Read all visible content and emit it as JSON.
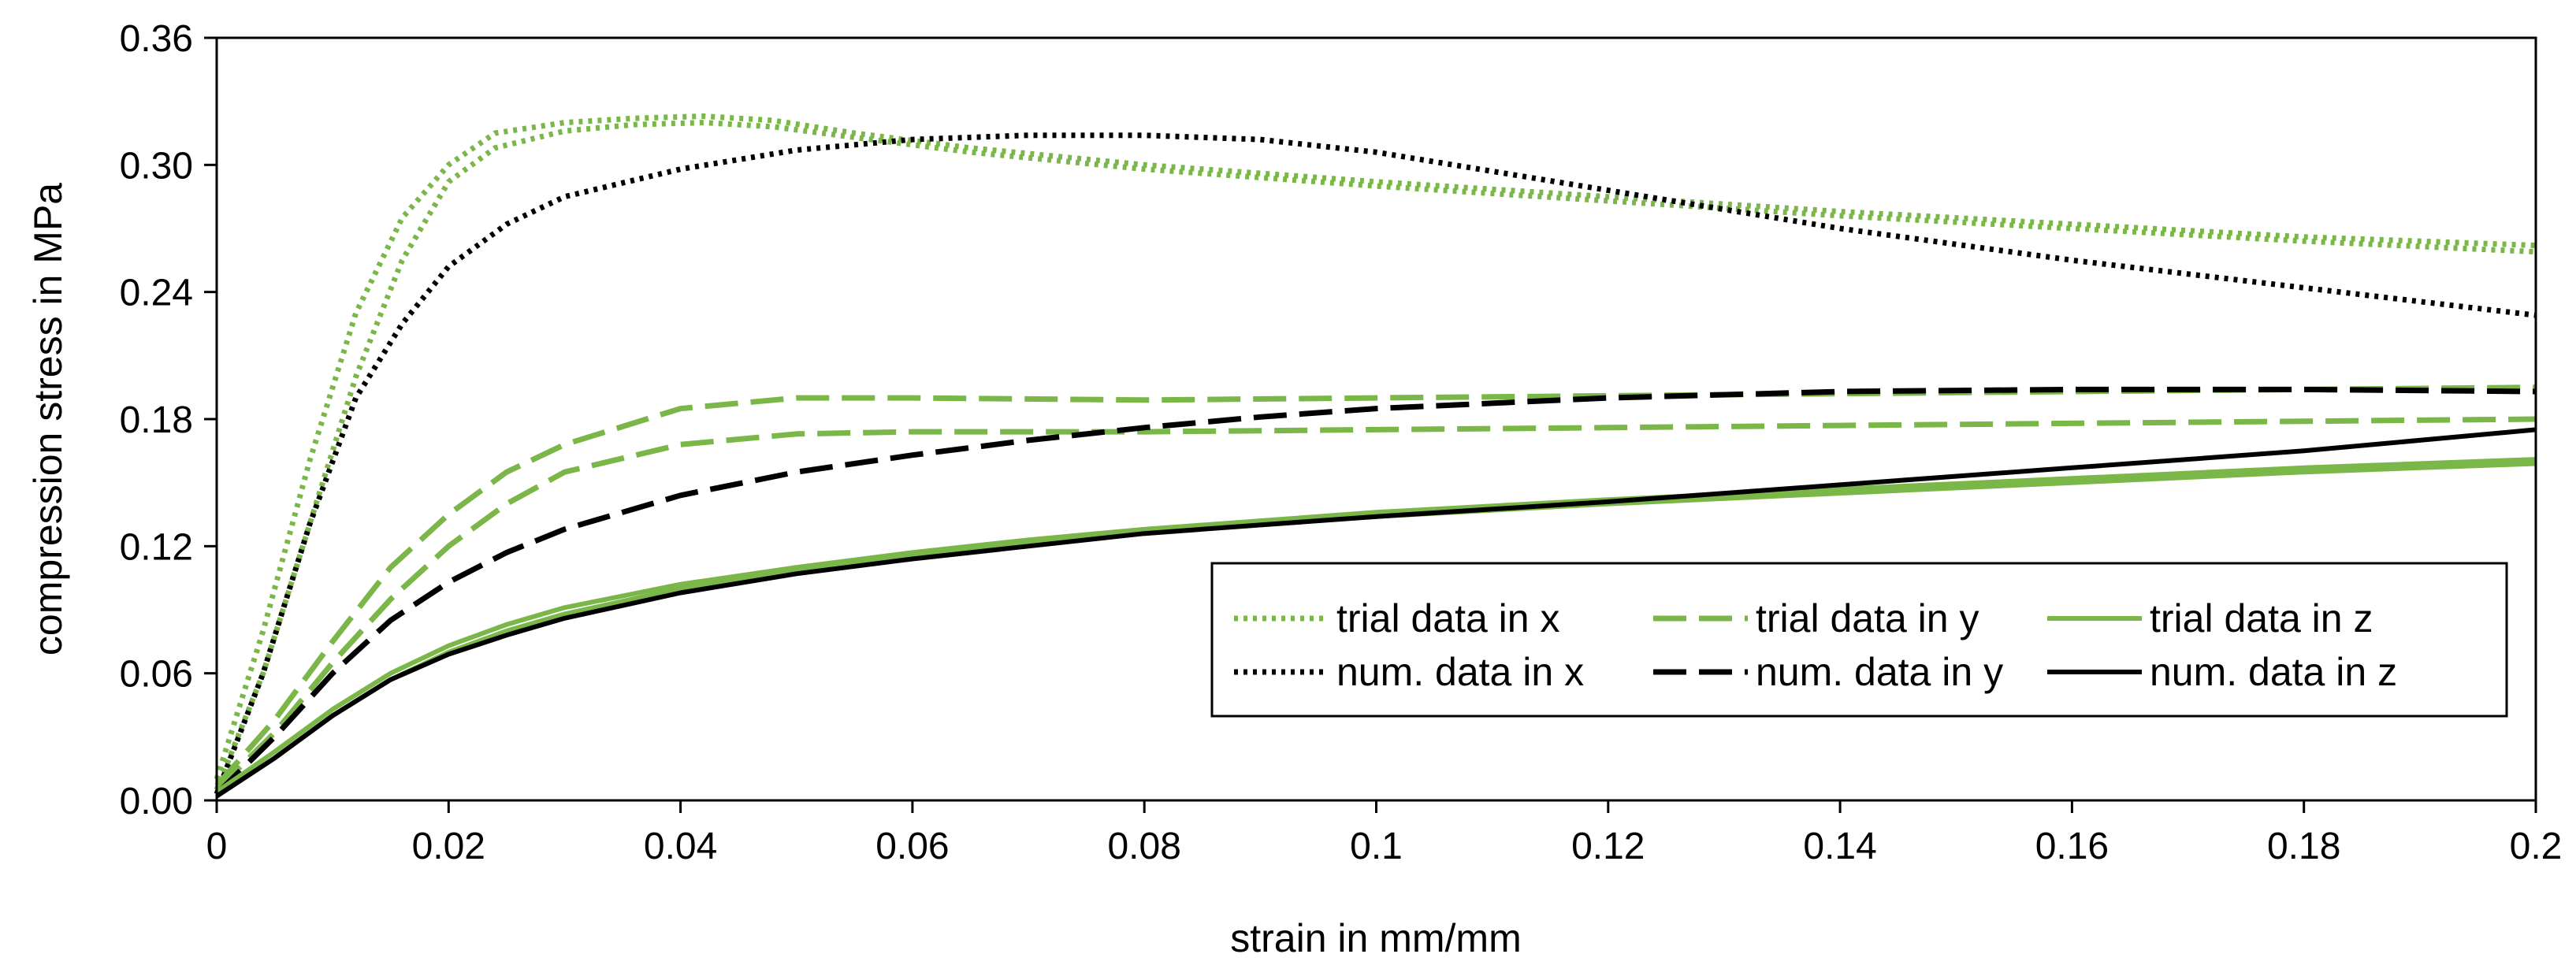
{
  "chart_data": {
    "type": "line",
    "xlabel": "strain in mm/mm",
    "ylabel": "compression stress in MPa",
    "xlim": [
      0,
      0.2
    ],
    "ylim": [
      0,
      0.36
    ],
    "x_ticks": [
      "0",
      "0.02",
      "0.04",
      "0.06",
      "0.08",
      "0.1",
      "0.12",
      "0.14",
      "0.16",
      "0.18",
      "0.2"
    ],
    "y_ticks": [
      "0.00",
      "0.06",
      "0.12",
      "0.18",
      "0.24",
      "0.30",
      "0.36"
    ],
    "grid": false,
    "legend_position": "lower-right",
    "series": [
      {
        "name": "trial data in x",
        "color": "#7ab648",
        "style": "dotted",
        "band": true,
        "points": [
          [
            0,
            0.005
          ],
          [
            0.004,
            0.06
          ],
          [
            0.008,
            0.13
          ],
          [
            0.012,
            0.2
          ],
          [
            0.016,
            0.255
          ],
          [
            0.02,
            0.292
          ],
          [
            0.024,
            0.308
          ],
          [
            0.03,
            0.316
          ],
          [
            0.036,
            0.319
          ],
          [
            0.042,
            0.32
          ],
          [
            0.048,
            0.318
          ],
          [
            0.055,
            0.313
          ],
          [
            0.065,
            0.306
          ],
          [
            0.08,
            0.298
          ],
          [
            0.1,
            0.29
          ],
          [
            0.12,
            0.283
          ],
          [
            0.14,
            0.276
          ],
          [
            0.16,
            0.27
          ],
          [
            0.18,
            0.264
          ],
          [
            0.2,
            0.259
          ]
        ],
        "points_upper": [
          [
            0,
            0.01
          ],
          [
            0.004,
            0.08
          ],
          [
            0.008,
            0.16
          ],
          [
            0.012,
            0.23
          ],
          [
            0.016,
            0.275
          ],
          [
            0.02,
            0.3
          ],
          [
            0.024,
            0.315
          ],
          [
            0.03,
            0.32
          ],
          [
            0.036,
            0.322
          ],
          [
            0.042,
            0.323
          ],
          [
            0.048,
            0.321
          ],
          [
            0.055,
            0.315
          ],
          [
            0.065,
            0.308
          ],
          [
            0.08,
            0.3
          ],
          [
            0.1,
            0.292
          ],
          [
            0.12,
            0.285
          ],
          [
            0.14,
            0.278
          ],
          [
            0.16,
            0.272
          ],
          [
            0.18,
            0.266
          ],
          [
            0.2,
            0.262
          ]
        ]
      },
      {
        "name": "num. data in x",
        "color": "#000000",
        "style": "dotted",
        "points": [
          [
            0,
            0.003
          ],
          [
            0.004,
            0.06
          ],
          [
            0.008,
            0.13
          ],
          [
            0.012,
            0.19
          ],
          [
            0.016,
            0.225
          ],
          [
            0.02,
            0.252
          ],
          [
            0.025,
            0.272
          ],
          [
            0.03,
            0.285
          ],
          [
            0.04,
            0.298
          ],
          [
            0.05,
            0.307
          ],
          [
            0.06,
            0.312
          ],
          [
            0.07,
            0.314
          ],
          [
            0.08,
            0.314
          ],
          [
            0.09,
            0.312
          ],
          [
            0.1,
            0.306
          ],
          [
            0.11,
            0.297
          ],
          [
            0.12,
            0.288
          ],
          [
            0.14,
            0.27
          ],
          [
            0.16,
            0.255
          ],
          [
            0.18,
            0.242
          ],
          [
            0.2,
            0.229
          ]
        ]
      },
      {
        "name": "trial data in y",
        "color": "#7ab648",
        "style": "dashed",
        "band": true,
        "points": [
          [
            0,
            0.005
          ],
          [
            0.005,
            0.032
          ],
          [
            0.01,
            0.065
          ],
          [
            0.015,
            0.095
          ],
          [
            0.02,
            0.12
          ],
          [
            0.025,
            0.14
          ],
          [
            0.03,
            0.155
          ],
          [
            0.04,
            0.168
          ],
          [
            0.05,
            0.173
          ],
          [
            0.06,
            0.174
          ],
          [
            0.08,
            0.174
          ],
          [
            0.1,
            0.175
          ],
          [
            0.12,
            0.176
          ],
          [
            0.14,
            0.177
          ],
          [
            0.16,
            0.178
          ],
          [
            0.18,
            0.179
          ],
          [
            0.2,
            0.18
          ]
        ],
        "points_upper": [
          [
            0,
            0.007
          ],
          [
            0.005,
            0.038
          ],
          [
            0.01,
            0.075
          ],
          [
            0.015,
            0.11
          ],
          [
            0.02,
            0.135
          ],
          [
            0.025,
            0.155
          ],
          [
            0.03,
            0.168
          ],
          [
            0.04,
            0.185
          ],
          [
            0.05,
            0.19
          ],
          [
            0.06,
            0.19
          ],
          [
            0.08,
            0.189
          ],
          [
            0.1,
            0.19
          ],
          [
            0.12,
            0.191
          ],
          [
            0.14,
            0.192
          ],
          [
            0.16,
            0.193
          ],
          [
            0.18,
            0.194
          ],
          [
            0.2,
            0.195
          ]
        ]
      },
      {
        "name": "num. data in y",
        "color": "#000000",
        "style": "dashed",
        "points": [
          [
            0,
            0.003
          ],
          [
            0.005,
            0.03
          ],
          [
            0.01,
            0.06
          ],
          [
            0.015,
            0.085
          ],
          [
            0.02,
            0.103
          ],
          [
            0.025,
            0.117
          ],
          [
            0.03,
            0.128
          ],
          [
            0.04,
            0.144
          ],
          [
            0.05,
            0.155
          ],
          [
            0.06,
            0.163
          ],
          [
            0.07,
            0.17
          ],
          [
            0.08,
            0.176
          ],
          [
            0.09,
            0.181
          ],
          [
            0.1,
            0.185
          ],
          [
            0.12,
            0.19
          ],
          [
            0.14,
            0.193
          ],
          [
            0.16,
            0.194
          ],
          [
            0.18,
            0.194
          ],
          [
            0.2,
            0.193
          ]
        ]
      },
      {
        "name": "trial data in z",
        "color": "#7ab648",
        "style": "solid",
        "band": true,
        "points": [
          [
            0,
            0.002
          ],
          [
            0.005,
            0.02
          ],
          [
            0.01,
            0.04
          ],
          [
            0.015,
            0.057
          ],
          [
            0.02,
            0.07
          ],
          [
            0.025,
            0.08
          ],
          [
            0.03,
            0.088
          ],
          [
            0.04,
            0.1
          ],
          [
            0.05,
            0.108
          ],
          [
            0.06,
            0.115
          ],
          [
            0.07,
            0.121
          ],
          [
            0.08,
            0.126
          ],
          [
            0.09,
            0.13
          ],
          [
            0.1,
            0.134
          ],
          [
            0.12,
            0.14
          ],
          [
            0.14,
            0.145
          ],
          [
            0.16,
            0.15
          ],
          [
            0.18,
            0.155
          ],
          [
            0.2,
            0.159
          ]
        ],
        "points_upper": [
          [
            0,
            0.004
          ],
          [
            0.005,
            0.023
          ],
          [
            0.01,
            0.043
          ],
          [
            0.015,
            0.06
          ],
          [
            0.02,
            0.073
          ],
          [
            0.025,
            0.083
          ],
          [
            0.03,
            0.091
          ],
          [
            0.04,
            0.102
          ],
          [
            0.05,
            0.11
          ],
          [
            0.06,
            0.117
          ],
          [
            0.07,
            0.123
          ],
          [
            0.08,
            0.128
          ],
          [
            0.09,
            0.132
          ],
          [
            0.1,
            0.136
          ],
          [
            0.12,
            0.142
          ],
          [
            0.14,
            0.147
          ],
          [
            0.16,
            0.152
          ],
          [
            0.18,
            0.157
          ],
          [
            0.2,
            0.161
          ]
        ]
      },
      {
        "name": "num. data in z",
        "color": "#000000",
        "style": "solid",
        "points": [
          [
            0,
            0.002
          ],
          [
            0.005,
            0.02
          ],
          [
            0.01,
            0.04
          ],
          [
            0.015,
            0.057
          ],
          [
            0.02,
            0.069
          ],
          [
            0.025,
            0.078
          ],
          [
            0.03,
            0.086
          ],
          [
            0.04,
            0.098
          ],
          [
            0.05,
            0.107
          ],
          [
            0.06,
            0.114
          ],
          [
            0.07,
            0.12
          ],
          [
            0.08,
            0.126
          ],
          [
            0.09,
            0.13
          ],
          [
            0.1,
            0.134
          ],
          [
            0.12,
            0.141
          ],
          [
            0.14,
            0.149
          ],
          [
            0.16,
            0.157
          ],
          [
            0.18,
            0.165
          ],
          [
            0.2,
            0.175
          ]
        ]
      }
    ]
  }
}
